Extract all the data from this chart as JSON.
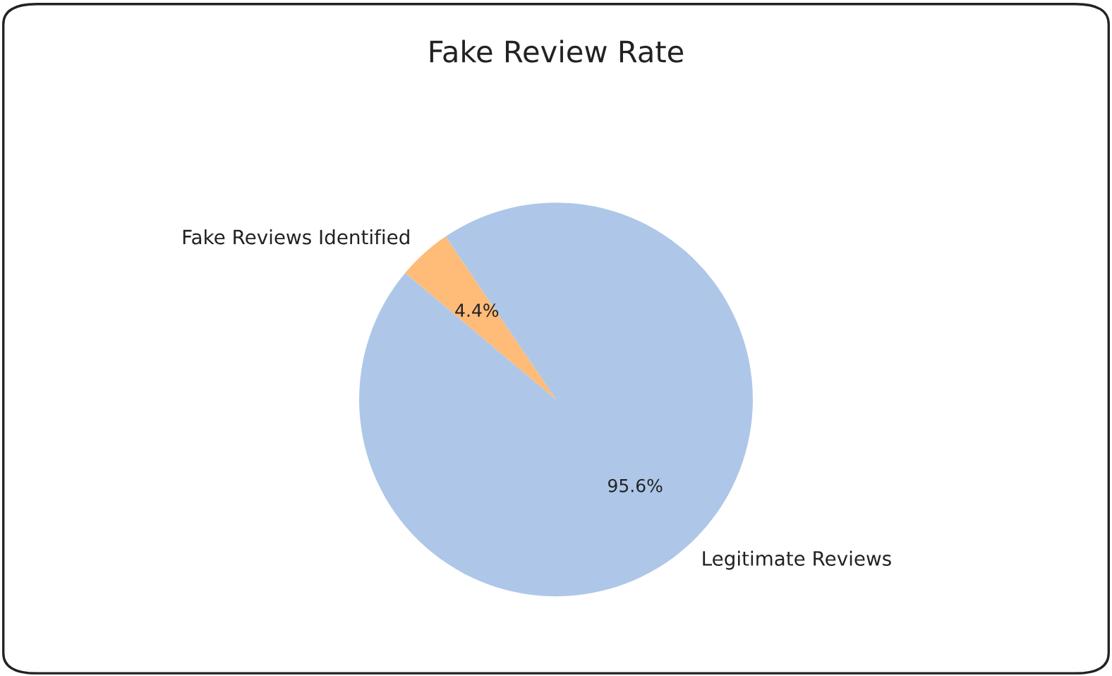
{
  "chart_data": {
    "type": "pie",
    "title": "Fake Review Rate",
    "categories": [
      "Legitimate Reviews",
      "Fake Reviews Identified"
    ],
    "values": [
      95.6,
      4.4
    ],
    "colors": [
      "#aec7e8",
      "#ffbb78"
    ],
    "value_labels": [
      "95.6%",
      "4.4%"
    ],
    "legend": false
  }
}
